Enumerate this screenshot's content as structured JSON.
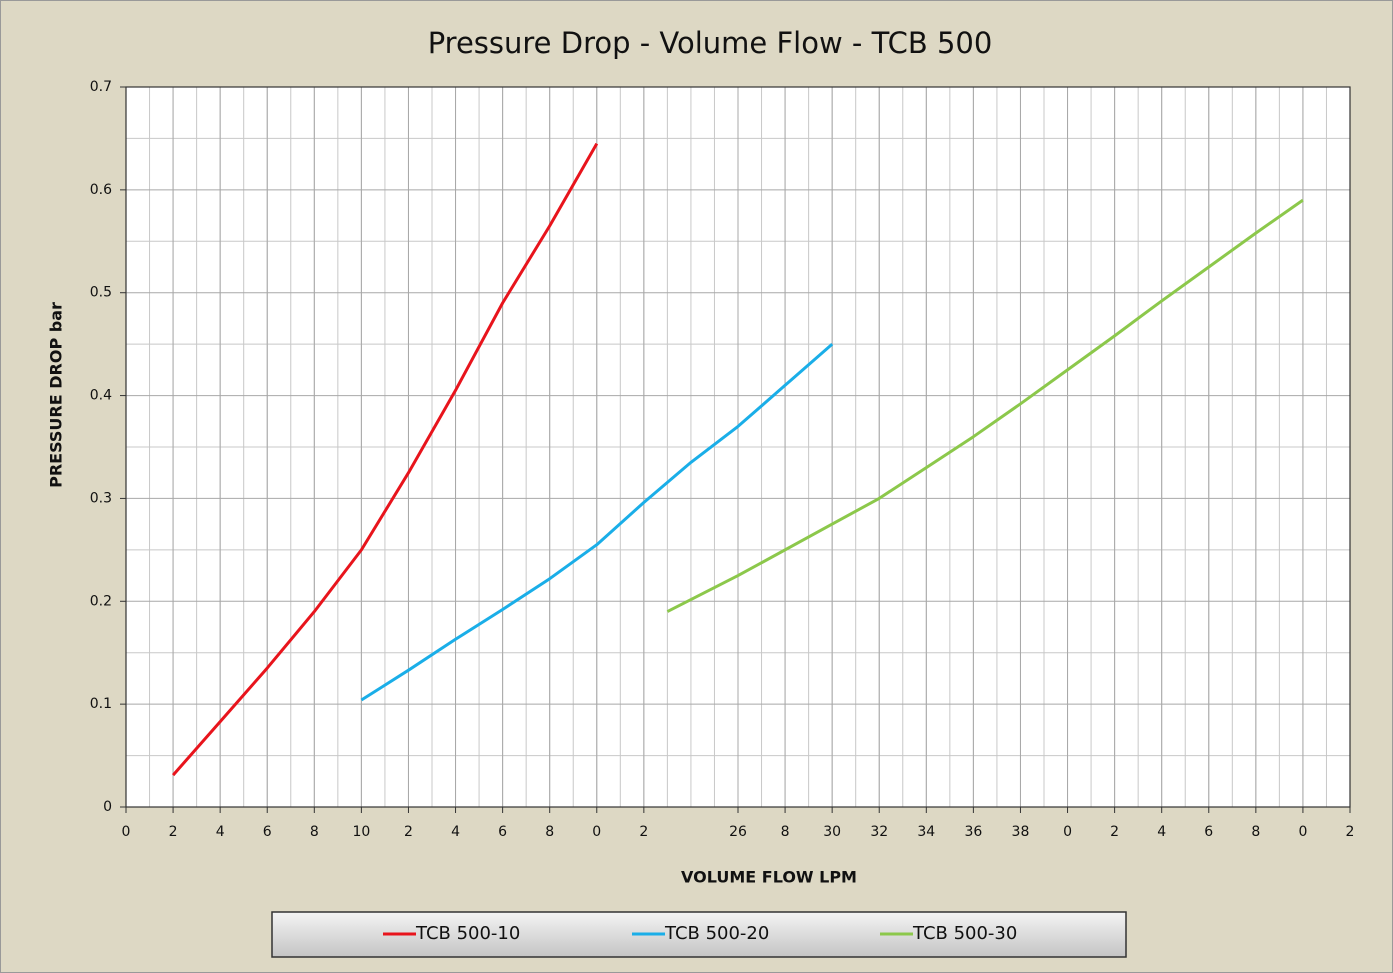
{
  "chart_data": {
    "type": "line",
    "title": "Pressure Drop - Volume Flow - TCB 500",
    "xlabel": "VOLUME FLOW LPM",
    "ylabel": "PRESSURE DROP bar",
    "xlim": [
      0,
      52
    ],
    "ylim": [
      0,
      0.7
    ],
    "xticks": [
      0,
      2,
      4,
      6,
      8,
      10,
      {
        "value": 12,
        "label": "2"
      },
      {
        "value": 14,
        "label": "4"
      },
      {
        "value": 16,
        "label": "6"
      },
      {
        "value": 18,
        "label": "8"
      },
      {
        "value": 20,
        "label": "0"
      },
      {
        "value": 22,
        "label": "2"
      },
      26,
      {
        "value": 28,
        "label": "8"
      },
      30,
      32,
      34,
      36,
      38,
      {
        "value": 40,
        "label": "0"
      },
      {
        "value": 42,
        "label": "2"
      },
      {
        "value": 44,
        "label": "4"
      },
      {
        "value": 46,
        "label": "6"
      },
      {
        "value": 48,
        "label": "8"
      },
      {
        "value": 50,
        "label": "0"
      },
      {
        "value": 52,
        "label": "2"
      }
    ],
    "yticks": [
      0,
      0.1,
      0.2,
      0.3,
      0.4,
      0.5,
      0.6,
      0.7
    ],
    "grid": true,
    "minor_grid": true,
    "legend": "bottom",
    "series": [
      {
        "name": "TCB 500-10",
        "color": "#e8141c",
        "x": [
          2,
          4,
          6,
          8,
          10,
          12,
          14,
          16,
          18,
          20
        ],
        "values": [
          0.031,
          0.083,
          0.135,
          0.19,
          0.25,
          0.325,
          0.405,
          0.49,
          0.565,
          0.645
        ]
      },
      {
        "name": "TCB 500-20",
        "color": "#1aaee8",
        "x": [
          10,
          12,
          14,
          16,
          18,
          20,
          22,
          24,
          26,
          28,
          30
        ],
        "values": [
          0.104,
          0.133,
          0.163,
          0.192,
          0.222,
          0.255,
          0.296,
          0.335,
          0.37,
          0.41,
          0.45
        ]
      },
      {
        "name": "TCB 500-30",
        "color": "#8cc84b",
        "x": [
          23,
          26,
          30,
          32,
          34,
          36,
          38,
          40,
          42,
          44,
          46,
          48,
          50
        ],
        "values": [
          0.19,
          0.225,
          0.275,
          0.3,
          0.33,
          0.36,
          0.392,
          0.425,
          0.458,
          0.492,
          0.525,
          0.558,
          0.59
        ]
      }
    ]
  }
}
